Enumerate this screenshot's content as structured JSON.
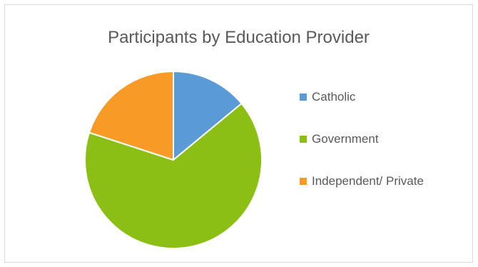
{
  "chart_data": {
    "type": "pie",
    "title": "Participants by Education Provider",
    "categories": [
      "Catholic",
      "Government",
      "Independent/ Private"
    ],
    "values": [
      14,
      66,
      20
    ],
    "value_unit": "percent of participants (estimated from slice angles)",
    "colors": [
      "#5b9bd5",
      "#8bbf14",
      "#f79a26"
    ],
    "start_angle_deg": 0,
    "direction": "clockwise",
    "legend": {
      "position": "right"
    }
  }
}
